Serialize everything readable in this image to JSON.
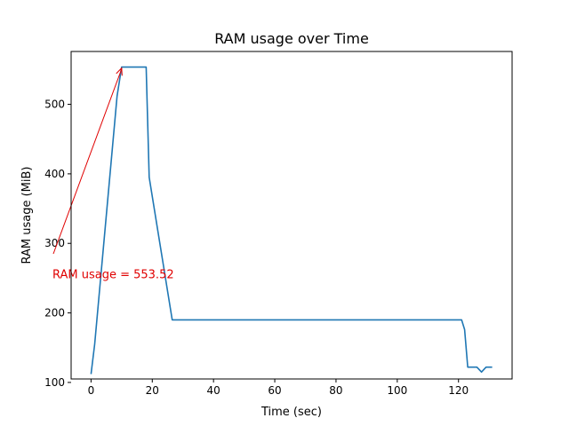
{
  "chart_data": {
    "type": "line",
    "title": "RAM usage over Time",
    "xlabel": "Time (sec)",
    "ylabel": "RAM usage (MiB)",
    "xlim": [
      -6.5,
      137.5
    ],
    "ylim": [
      105,
      576
    ],
    "xticks": [
      0,
      20,
      40,
      60,
      80,
      100,
      120
    ],
    "yticks": [
      100,
      200,
      300,
      400,
      500
    ],
    "grid": false,
    "series": [
      {
        "color": "#1f77b4",
        "x": [
          0,
          1.2,
          8.5,
          10,
          18,
          19,
          26.5,
          40,
          60,
          80,
          100,
          120,
          121,
          122,
          123,
          126,
          127.5,
          129,
          131
        ],
        "y": [
          112,
          155,
          512,
          553.52,
          553.52,
          395,
          190,
          190,
          190,
          190,
          190,
          190,
          190,
          176,
          122,
          122,
          115,
          122,
          122
        ]
      }
    ],
    "annotation": {
      "text": "RAM usage = 553.52",
      "color": "#e00000",
      "xy": [
        10,
        553.52
      ],
      "xytext": [
        -12.6,
        255
      ]
    }
  }
}
